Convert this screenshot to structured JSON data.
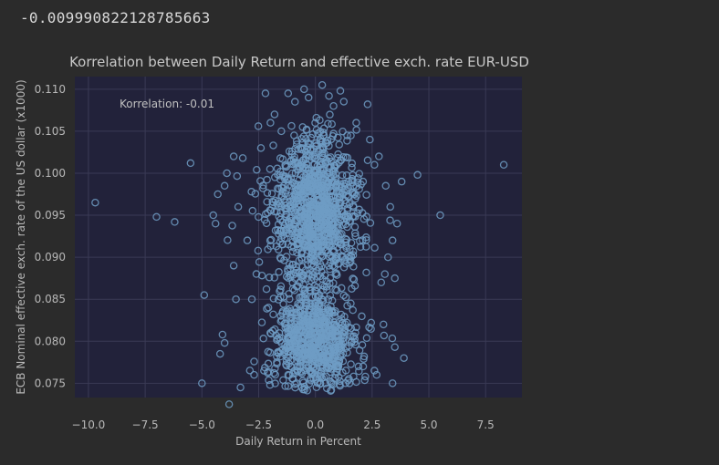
{
  "output": {
    "text": "-0.009990822128785663"
  },
  "chart_data": {
    "type": "scatter",
    "title": "Korrelation between Daily Return and effective exch. rate EUR-USD",
    "xlabel": "Daily Return in Percent",
    "ylabel": "ECB Nominal effective exch. rate of the US dollar (x1000)",
    "annotation": "Korrelation: -0.01",
    "xlim": [
      -10.6,
      9.1
    ],
    "ylim": [
      0.0733,
      0.1115
    ],
    "xticks": [
      -10.0,
      -7.5,
      -5.0,
      -2.5,
      0.0,
      2.5,
      5.0,
      7.5
    ],
    "xtick_labels": [
      "−10.0",
      "−7.5",
      "−5.0",
      "−2.5",
      "0.0",
      "2.5",
      "5.0",
      "7.5"
    ],
    "yticks": [
      0.075,
      0.08,
      0.085,
      0.09,
      0.095,
      0.1,
      0.105,
      0.11
    ],
    "ytick_labels": [
      "0.075",
      "0.080",
      "0.085",
      "0.090",
      "0.095",
      "0.100",
      "0.105",
      "0.110"
    ],
    "grid": true,
    "marker": "hollow-circle",
    "series": [
      {
        "points": [
          [
            -9.7,
            0.0965
          ],
          [
            -7.0,
            0.0948
          ],
          [
            -6.2,
            0.0942
          ],
          [
            -5.5,
            0.1012
          ],
          [
            -4.9,
            0.0855
          ],
          [
            -5.0,
            0.075
          ],
          [
            8.3,
            0.101
          ],
          [
            5.5,
            0.095
          ],
          [
            4.5,
            0.0998
          ],
          [
            3.9,
            0.078
          ],
          [
            3.5,
            0.0793
          ],
          [
            3.4,
            0.075
          ],
          [
            -4.2,
            0.0785
          ],
          [
            -4.0,
            0.0798
          ],
          [
            -3.8,
            0.0725
          ],
          [
            -3.6,
            0.089
          ],
          [
            -3.5,
            0.085
          ],
          [
            -3.3,
            0.0745
          ],
          [
            -4.3,
            0.0975
          ],
          [
            -4.0,
            0.0985
          ],
          [
            -3.9,
            0.1
          ],
          [
            -3.6,
            0.102
          ],
          [
            -3.2,
            0.1018
          ],
          [
            -4.5,
            0.095
          ],
          [
            -4.4,
            0.094
          ],
          [
            -3.4,
            0.096
          ],
          [
            -3.0,
            0.092
          ],
          [
            -2.8,
            0.085
          ],
          [
            -2.6,
            0.088
          ],
          [
            3.0,
            0.082
          ],
          [
            3.2,
            0.09
          ],
          [
            3.4,
            0.092
          ],
          [
            3.6,
            0.094
          ],
          [
            3.3,
            0.096
          ],
          [
            3.1,
            0.0985
          ],
          [
            3.8,
            0.099
          ],
          [
            2.8,
            0.102
          ],
          [
            2.6,
            0.101
          ],
          [
            2.9,
            0.087
          ],
          [
            3.5,
            0.0875
          ],
          [
            2.7,
            0.076
          ],
          [
            -1.2,
            0.1095
          ],
          [
            -0.5,
            0.11
          ],
          [
            0.3,
            0.1105
          ],
          [
            1.1,
            0.1098
          ],
          [
            2.3,
            0.1082
          ],
          [
            -2.2,
            0.1095
          ],
          [
            -1.8,
            0.107
          ],
          [
            1.8,
            0.106
          ],
          [
            -2.0,
            0.1005
          ],
          [
            2.1,
            0.099
          ],
          [
            -0.9,
            0.1085
          ],
          [
            0.8,
            0.108
          ],
          [
            -0.3,
            0.109
          ],
          [
            0.6,
            0.1092
          ],
          [
            -1.5,
            0.105
          ],
          [
            1.4,
            0.1045
          ],
          [
            -2.4,
            0.103
          ],
          [
            2.4,
            0.104
          ],
          [
            -1.2,
            0.076
          ],
          [
            -0.6,
            0.0745
          ],
          [
            0.7,
            0.0742
          ],
          [
            1.5,
            0.075
          ],
          [
            -2.0,
            0.0748
          ],
          [
            2.2,
            0.0758
          ],
          [
            -2.7,
            0.076
          ],
          [
            2.6,
            0.0765
          ],
          [
            -1.7,
            0.0775
          ],
          [
            1.9,
            0.077
          ]
        ]
      }
    ]
  }
}
